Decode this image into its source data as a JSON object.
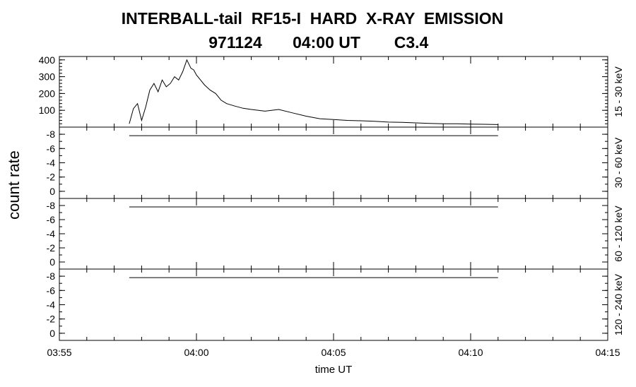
{
  "chart_data": {
    "type": "line",
    "title_line1": "INTERBALL-tail  RF15-I  HARD  X-RAY  EMISSION",
    "title_line2": [
      "971124",
      "04:00 UT",
      "C3.4"
    ],
    "ylabel": "count rate",
    "xlabel": "time UT",
    "x_ticks": [
      {
        "minute": 0,
        "label": "03:55"
      },
      {
        "minute": 5,
        "label": "04:00"
      },
      {
        "minute": 10,
        "label": "04:05"
      },
      {
        "minute": 15,
        "label": "04:10"
      },
      {
        "minute": 20,
        "label": "04:15"
      }
    ],
    "xlim_minutes_from_0355": [
      0,
      20
    ],
    "panels": [
      {
        "band": "15 - 30 keV",
        "ylim": [
          0,
          420
        ],
        "yticks": [
          {
            "value": 100,
            "label": "100"
          },
          {
            "value": 200,
            "label": "200"
          },
          {
            "value": 300,
            "label": "300"
          },
          {
            "value": 400,
            "label": "400"
          }
        ],
        "series": {
          "x": [
            2.55,
            2.7,
            2.85,
            3.0,
            3.15,
            3.3,
            3.45,
            3.6,
            3.75,
            3.9,
            4.05,
            4.2,
            4.35,
            4.5,
            4.65,
            4.8,
            4.9,
            5.0,
            5.15,
            5.3,
            5.5,
            5.7,
            5.9,
            6.1,
            6.4,
            6.7,
            7.0,
            7.5,
            8.0,
            8.5,
            9.0,
            9.5,
            10.0,
            10.5,
            11.0,
            11.5,
            12.0,
            12.5,
            13.0,
            13.5,
            14.0,
            14.5,
            15.0,
            15.5,
            16.0
          ],
          "y": [
            20,
            110,
            140,
            40,
            120,
            220,
            260,
            210,
            280,
            240,
            260,
            300,
            280,
            330,
            400,
            350,
            340,
            310,
            280,
            250,
            220,
            200,
            160,
            140,
            125,
            112,
            105,
            95,
            105,
            85,
            65,
            50,
            45,
            40,
            38,
            35,
            30,
            28,
            25,
            22,
            20,
            20,
            18,
            17,
            15
          ]
        }
      },
      {
        "band": "30 - 60 keV",
        "ylim": [
          -1,
          9
        ],
        "yticks": [
          {
            "value": 8,
            "label": "-8"
          },
          {
            "value": 6,
            "label": "-6"
          },
          {
            "value": 4,
            "label": "-4"
          },
          {
            "value": 2,
            "label": "-2"
          },
          {
            "value": 0,
            "label": "0"
          }
        ],
        "series": {
          "x": [
            2.55,
            16.0
          ],
          "y": [
            7.8,
            7.8
          ]
        }
      },
      {
        "band": "60 - 120 keV",
        "ylim": [
          -1,
          9
        ],
        "yticks": [
          {
            "value": 8,
            "label": "-8"
          },
          {
            "value": 6,
            "label": "-6"
          },
          {
            "value": 4,
            "label": "-4"
          },
          {
            "value": 2,
            "label": "-2"
          },
          {
            "value": 0,
            "label": "0"
          }
        ],
        "series": {
          "x": [
            2.55,
            16.0
          ],
          "y": [
            7.8,
            7.8
          ]
        }
      },
      {
        "band": "120 - 240 keV",
        "ylim": [
          -1,
          9
        ],
        "yticks": [
          {
            "value": 8,
            "label": "-8"
          },
          {
            "value": 6,
            "label": "-6"
          },
          {
            "value": 4,
            "label": "-4"
          },
          {
            "value": 2,
            "label": "-2"
          },
          {
            "value": 0,
            "label": "0"
          }
        ],
        "series": {
          "x": [
            2.55,
            16.0
          ],
          "y": [
            7.8,
            7.8
          ]
        }
      }
    ]
  }
}
